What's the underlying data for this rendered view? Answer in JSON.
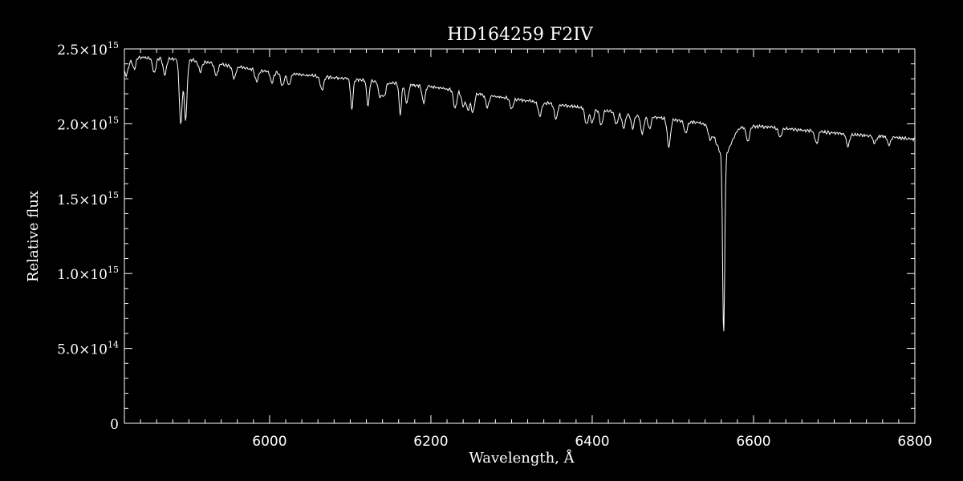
{
  "chart_data": {
    "type": "line",
    "title": "HD164259   F2IV",
    "xlabel": "Wavelength, Å",
    "ylabel": "Relative flux",
    "xlim": [
      5820,
      6800
    ],
    "ylim": [
      0,
      2500000000000000.0
    ],
    "grid": false,
    "x_ticks": [
      {
        "value": 6000,
        "label": "6000"
      },
      {
        "value": 6200,
        "label": "6200"
      },
      {
        "value": 6400,
        "label": "6400"
      },
      {
        "value": 6600,
        "label": "6600"
      },
      {
        "value": 6800,
        "label": "6800"
      }
    ],
    "y_ticks": [
      {
        "value": 0,
        "mantissa": "0",
        "exponent": ""
      },
      {
        "value": 500000000000000.0,
        "mantissa": "5.0×10",
        "exponent": "14"
      },
      {
        "value": 1000000000000000.0,
        "mantissa": "1.0×10",
        "exponent": "15"
      },
      {
        "value": 1500000000000000.0,
        "mantissa": "1.5×10",
        "exponent": "15"
      },
      {
        "value": 2000000000000000.0,
        "mantissa": "2.0×10",
        "exponent": "15"
      },
      {
        "value": 2500000000000000.0,
        "mantissa": "2.5×10",
        "exponent": "15"
      }
    ],
    "series": [
      {
        "continuum": [
          [
            5820,
            2460000000000000.0
          ],
          [
            5900,
            2440000000000000.0
          ],
          [
            6000,
            2360000000000000.0
          ],
          [
            6100,
            2310000000000000.0
          ],
          [
            6200,
            2260000000000000.0
          ],
          [
            6300,
            2180000000000000.0
          ],
          [
            6400,
            2110000000000000.0
          ],
          [
            6500,
            2040000000000000.0
          ],
          [
            6560,
            2000000000000000.0
          ],
          [
            6620,
            1990000000000000.0
          ],
          [
            6700,
            1950000000000000.0
          ],
          [
            6800,
            1910000000000000.0
          ]
        ],
        "absorption_lines": [
          [
            5822,
            120000000000000.0,
            3
          ],
          [
            5832,
            80000000000000.0,
            2
          ],
          [
            5857,
            100000000000000.0,
            2
          ],
          [
            5870,
            110000000000000.0,
            2
          ],
          [
            5889.9,
            430000000000000.0,
            1.8
          ],
          [
            5895.9,
            400000000000000.0,
            1.8
          ],
          [
            5914,
            70000000000000.0,
            2
          ],
          [
            5934,
            80000000000000.0,
            2
          ],
          [
            5956,
            80000000000000.0,
            2
          ],
          [
            5984,
            80000000000000.0,
            2
          ],
          [
            6003,
            70000000000000.0,
            2
          ],
          [
            6016,
            90000000000000.0,
            2
          ],
          [
            6024,
            80000000000000.0,
            2
          ],
          [
            6065,
            90000000000000.0,
            2
          ],
          [
            6102,
            200000000000000.0,
            1.5
          ],
          [
            6122,
            170000000000000.0,
            1.5
          ],
          [
            6137,
            100000000000000.0,
            2
          ],
          [
            6142,
            90000000000000.0,
            2
          ],
          [
            6162,
            200000000000000.0,
            1.5
          ],
          [
            6170,
            120000000000000.0,
            2
          ],
          [
            6191,
            110000000000000.0,
            2
          ],
          [
            6230,
            120000000000000.0,
            2
          ],
          [
            6240,
            100000000000000.0,
            2
          ],
          [
            6246,
            120000000000000.0,
            2
          ],
          [
            6252,
            130000000000000.0,
            2
          ],
          [
            6270,
            80000000000000.0,
            2
          ],
          [
            6300,
            70000000000000.0,
            2
          ],
          [
            6335,
            90000000000000.0,
            2
          ],
          [
            6355,
            100000000000000.0,
            2
          ],
          [
            6393,
            110000000000000.0,
            2
          ],
          [
            6400,
            90000000000000.0,
            2
          ],
          [
            6411,
            100000000000000.0,
            2
          ],
          [
            6430,
            80000000000000.0,
            2
          ],
          [
            6439,
            100000000000000.0,
            2
          ],
          [
            6450,
            90000000000000.0,
            2
          ],
          [
            6462,
            120000000000000.0,
            2
          ],
          [
            6471,
            80000000000000.0,
            2
          ],
          [
            6495,
            180000000000000.0,
            2
          ],
          [
            6516,
            80000000000000.0,
            2
          ],
          [
            6546,
            70000000000000.0,
            2
          ],
          [
            6563,
            1200000000000000.0,
            1.3
          ],
          [
            6563,
            200000000000000.0,
            9
          ],
          [
            6593,
            100000000000000.0,
            2
          ],
          [
            6633,
            60000000000000.0,
            2
          ],
          [
            6678,
            80000000000000.0,
            2
          ],
          [
            6717,
            80000000000000.0,
            2
          ],
          [
            6750,
            50000000000000.0,
            2
          ],
          [
            6768,
            50000000000000.0,
            2
          ]
        ]
      }
    ]
  }
}
